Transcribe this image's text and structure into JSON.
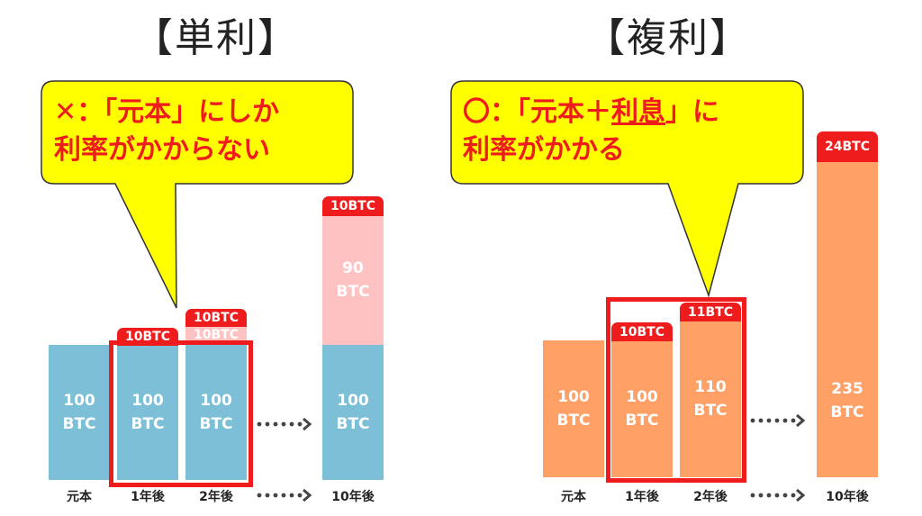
{
  "titles": {
    "simple": "【単利】",
    "compound": "【複利】"
  },
  "bubbles": {
    "simple": {
      "mark": "✕",
      "line1_rest": "：「元本」にしか",
      "line2": "利率がかからない"
    },
    "compound": {
      "mark": "〇",
      "line1_a": "：「元本＋",
      "line1_u": "利息",
      "line1_b": "」に",
      "line2": "利率がかかる"
    }
  },
  "simple": {
    "bars": [
      {
        "label": "100\nBTC",
        "line1": "100",
        "line2": "BTC"
      },
      {
        "line1": "100",
        "line2": "BTC"
      },
      {
        "line1": "100",
        "line2": "BTC"
      },
      {
        "line1": "100",
        "line2": "BTC"
      }
    ],
    "interest_tags": [
      "10BTC",
      "10BTC",
      "10BTC",
      "10BTC"
    ],
    "accum": {
      "line1": "90",
      "line2": "BTC"
    },
    "x_labels": [
      "元本",
      "1年後",
      "2年後",
      "10年後"
    ]
  },
  "compound": {
    "bars": [
      {
        "line1": "100",
        "line2": "BTC"
      },
      {
        "line1": "100",
        "line2": "BTC"
      },
      {
        "line1": "110",
        "line2": "BTC"
      },
      {
        "line1": "235",
        "line2": "BTC"
      }
    ],
    "interest_tags": [
      "10BTC",
      "11BTC",
      "24BTC"
    ],
    "x_labels": [
      "元本",
      "1年後",
      "2年後",
      "10年後"
    ]
  },
  "colors": {
    "blue": "#7cbfd6",
    "pink": "#ffc2c2",
    "orange": "#ffa167",
    "red": "#ee1c1c",
    "yellow": "#ffff00"
  }
}
